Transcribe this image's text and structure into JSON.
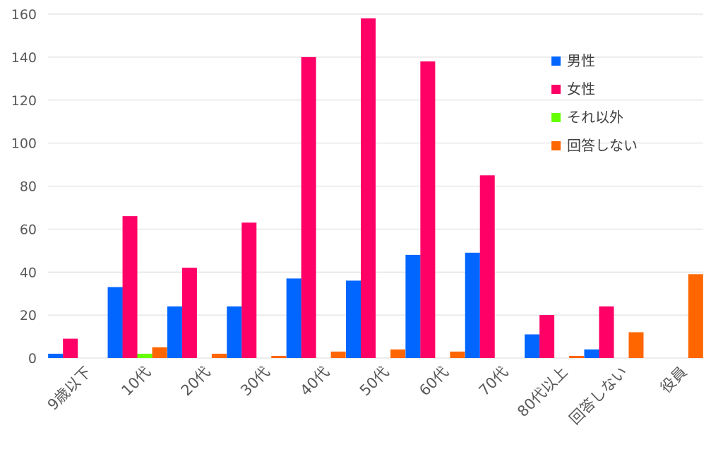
{
  "chart_data": {
    "type": "bar",
    "title": "",
    "xlabel": "",
    "ylabel": "",
    "ylim": [
      0,
      160
    ],
    "yticks": [
      0,
      20,
      40,
      60,
      80,
      100,
      120,
      140,
      160
    ],
    "grid": true,
    "legend_position": "top-right",
    "categories": [
      "9歳以下",
      "10代",
      "20代",
      "30代",
      "40代",
      "50代",
      "60代",
      "70代",
      "80代以上",
      "回答しない",
      "役員"
    ],
    "series": [
      {
        "name": "男性",
        "color": "#0066ff",
        "values": [
          2,
          33,
          24,
          24,
          37,
          36,
          48,
          49,
          11,
          4,
          0
        ]
      },
      {
        "name": "女性",
        "color": "#ff0066",
        "values": [
          9,
          66,
          42,
          63,
          140,
          158,
          138,
          85,
          20,
          24,
          0
        ]
      },
      {
        "name": "それ以外",
        "color": "#66ff00",
        "values": [
          0,
          2,
          0,
          0,
          0,
          0,
          0,
          0,
          0,
          0,
          0
        ]
      },
      {
        "name": "回答しない",
        "color": "#ff6600",
        "values": [
          0,
          5,
          2,
          1,
          3,
          4,
          3,
          0,
          1,
          12,
          39
        ]
      }
    ]
  }
}
